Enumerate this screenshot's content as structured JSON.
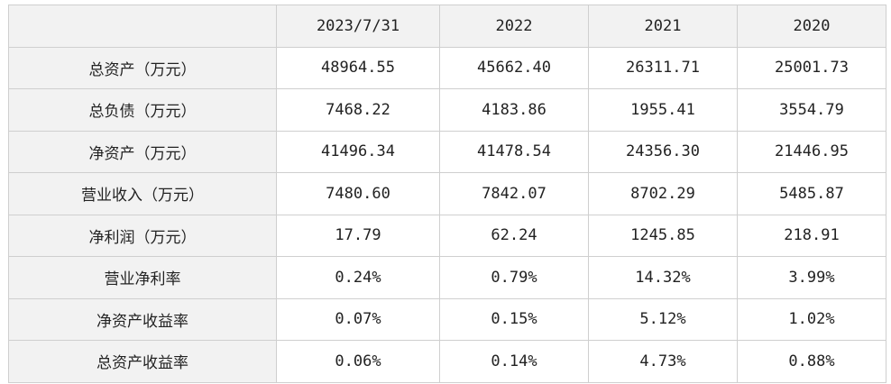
{
  "table": {
    "corner": "",
    "columns": [
      "2023/7/31",
      "2022",
      "2021",
      "2020"
    ],
    "rows": [
      {
        "label": "总资产（万元）",
        "values": [
          "48964.55",
          "45662.40",
          "26311.71",
          "25001.73"
        ]
      },
      {
        "label": "总负债（万元）",
        "values": [
          "7468.22",
          "4183.86",
          "1955.41",
          "3554.79"
        ]
      },
      {
        "label": "净资产（万元）",
        "values": [
          "41496.34",
          "41478.54",
          "24356.30",
          "21446.95"
        ]
      },
      {
        "label": "营业收入（万元）",
        "values": [
          "7480.60",
          "7842.07",
          "8702.29",
          "5485.87"
        ]
      },
      {
        "label": "净利润（万元）",
        "values": [
          "17.79",
          "62.24",
          "1245.85",
          "218.91"
        ]
      },
      {
        "label": "营业净利率",
        "values": [
          "0.24%",
          "0.79%",
          "14.32%",
          "3.99%"
        ]
      },
      {
        "label": "净资产收益率",
        "values": [
          "0.07%",
          "0.15%",
          "5.12%",
          "1.02%"
        ]
      },
      {
        "label": "总资产收益率",
        "values": [
          "0.06%",
          "0.14%",
          "4.73%",
          "0.88%"
        ]
      }
    ]
  }
}
